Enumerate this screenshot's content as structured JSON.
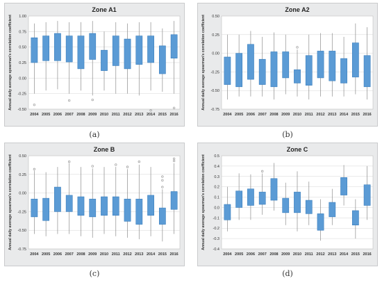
{
  "colors": {
    "box": "#5b9bd5",
    "box_edge": "#2e75b6",
    "whisker": "#8c8c8c",
    "plot_bg": "#ffffff",
    "grid": "#d4d4d4",
    "outlier": "#9a9a9a"
  },
  "chart_data": [
    {
      "type": "boxplot",
      "title": "Zone A1",
      "caption": "(a)",
      "ylabel": "Annual daily average spearman's correlation coefficient",
      "ylim": [
        -0.5,
        1.0
      ],
      "yticks": [
        -0.5,
        -0.25,
        0,
        0.25,
        0.5,
        0.75,
        1
      ],
      "ytick_labels": [
        "-0.50",
        "-0.25",
        "0.00",
        "0.25",
        "0.50",
        "0.75",
        "1.00"
      ],
      "categories": [
        "2004",
        "2005",
        "2006",
        "2007",
        "2008",
        "2009",
        "2010",
        "2011",
        "2012",
        "2013",
        "2014",
        "2015",
        "2016"
      ],
      "boxes": [
        {
          "min": -0.25,
          "q1": 0.25,
          "q3": 0.65,
          "max": 0.88,
          "outliers": [
            -0.43
          ]
        },
        {
          "min": -0.2,
          "q1": 0.28,
          "q3": 0.68,
          "max": 0.9,
          "outliers": []
        },
        {
          "min": -0.18,
          "q1": 0.28,
          "q3": 0.72,
          "max": 0.92,
          "outliers": []
        },
        {
          "min": -0.25,
          "q1": 0.26,
          "q3": 0.68,
          "max": 0.9,
          "outliers": [
            -0.36
          ]
        },
        {
          "min": -0.2,
          "q1": 0.15,
          "q3": 0.68,
          "max": 0.9,
          "outliers": []
        },
        {
          "min": -0.28,
          "q1": 0.3,
          "q3": 0.72,
          "max": 0.92,
          "outliers": [
            -0.35
          ]
        },
        {
          "min": -0.2,
          "q1": 0.12,
          "q3": 0.45,
          "max": 0.75,
          "outliers": []
        },
        {
          "min": -0.25,
          "q1": 0.2,
          "q3": 0.68,
          "max": 0.9,
          "outliers": []
        },
        {
          "min": -0.25,
          "q1": 0.15,
          "q3": 0.63,
          "max": 0.88,
          "outliers": []
        },
        {
          "min": -0.28,
          "q1": 0.22,
          "q3": 0.68,
          "max": 0.9,
          "outliers": []
        },
        {
          "min": -0.2,
          "q1": 0.25,
          "q3": 0.68,
          "max": 0.9,
          "outliers": [
            -0.52
          ]
        },
        {
          "min": -0.22,
          "q1": 0.07,
          "q3": 0.52,
          "max": 0.8,
          "outliers": []
        },
        {
          "min": -0.25,
          "q1": 0.32,
          "q3": 0.7,
          "max": 0.92,
          "outliers": [
            -0.48
          ]
        }
      ]
    },
    {
      "type": "boxplot",
      "title": "Zone A2",
      "caption": "(b)",
      "ylabel": "Annual daily average spearman's correlation coefficient",
      "ylim": [
        -0.75,
        0.5
      ],
      "yticks": [
        -0.75,
        -0.5,
        -0.25,
        0,
        0.25,
        0.5
      ],
      "ytick_labels": [
        "-0.75",
        "-0.50",
        "-0.25",
        "0.00",
        "0.25",
        "0.50"
      ],
      "categories": [
        "2004",
        "2005",
        "2006",
        "2007",
        "2008",
        "2009",
        "2010",
        "2011",
        "2012",
        "2013",
        "2014",
        "2015",
        "2016"
      ],
      "boxes": [
        {
          "min": -0.62,
          "q1": -0.42,
          "q3": -0.05,
          "max": 0.25,
          "outliers": []
        },
        {
          "min": -0.58,
          "q1": -0.45,
          "q3": 0.0,
          "max": 0.25,
          "outliers": []
        },
        {
          "min": -0.58,
          "q1": -0.35,
          "q3": 0.12,
          "max": 0.3,
          "outliers": []
        },
        {
          "min": -0.58,
          "q1": -0.42,
          "q3": -0.08,
          "max": 0.22,
          "outliers": []
        },
        {
          "min": -0.62,
          "q1": -0.45,
          "q3": 0.02,
          "max": 0.28,
          "outliers": []
        },
        {
          "min": -0.55,
          "q1": -0.33,
          "q3": 0.02,
          "max": 0.25,
          "outliers": []
        },
        {
          "min": -0.58,
          "q1": -0.4,
          "q3": -0.22,
          "max": 0.05,
          "outliers": [
            0.08
          ]
        },
        {
          "min": -0.62,
          "q1": -0.43,
          "q3": -0.03,
          "max": 0.25,
          "outliers": []
        },
        {
          "min": -0.58,
          "q1": -0.33,
          "q3": 0.03,
          "max": 0.27,
          "outliers": []
        },
        {
          "min": -0.58,
          "q1": -0.37,
          "q3": 0.03,
          "max": 0.27,
          "outliers": []
        },
        {
          "min": -0.58,
          "q1": -0.4,
          "q3": -0.07,
          "max": 0.22,
          "outliers": []
        },
        {
          "min": -0.55,
          "q1": -0.32,
          "q3": 0.14,
          "max": 0.4,
          "outliers": []
        },
        {
          "min": -0.62,
          "q1": -0.45,
          "q3": -0.03,
          "max": 0.35,
          "outliers": []
        }
      ]
    },
    {
      "type": "boxplot",
      "title": "Zone B",
      "caption": "(c)",
      "ylabel": "Annual daily average spearman's correlation coefficient",
      "ylim": [
        -0.75,
        0.5
      ],
      "yticks": [
        -0.75,
        -0.5,
        -0.25,
        0,
        0.25,
        0.5
      ],
      "ytick_labels": [
        "-0.75",
        "-0.50",
        "-0.25",
        "0.00",
        "0.25",
        "0.50"
      ],
      "categories": [
        "2004",
        "2005",
        "2006",
        "2007",
        "2008",
        "2009",
        "2010",
        "2011",
        "2012",
        "2013",
        "2014",
        "2015",
        "2016"
      ],
      "boxes": [
        {
          "min": -0.55,
          "q1": -0.32,
          "q3": -0.08,
          "max": 0.3,
          "outliers": [
            0.32
          ]
        },
        {
          "min": -0.58,
          "q1": -0.37,
          "q3": -0.07,
          "max": 0.28,
          "outliers": []
        },
        {
          "min": -0.55,
          "q1": -0.25,
          "q3": 0.08,
          "max": 0.35,
          "outliers": []
        },
        {
          "min": -0.55,
          "q1": -0.25,
          "q3": -0.03,
          "max": 0.4,
          "outliers": [
            0.42
          ]
        },
        {
          "min": -0.58,
          "q1": -0.3,
          "q3": -0.05,
          "max": 0.35,
          "outliers": []
        },
        {
          "min": -0.6,
          "q1": -0.32,
          "q3": -0.08,
          "max": 0.33,
          "outliers": [
            0.36
          ]
        },
        {
          "min": -0.55,
          "q1": -0.3,
          "q3": -0.05,
          "max": 0.35,
          "outliers": []
        },
        {
          "min": -0.58,
          "q1": -0.3,
          "q3": -0.05,
          "max": 0.35,
          "outliers": [
            0.38
          ]
        },
        {
          "min": -0.6,
          "q1": -0.38,
          "q3": -0.08,
          "max": 0.32,
          "outliers": [
            0.35
          ]
        },
        {
          "min": -0.62,
          "q1": -0.42,
          "q3": -0.08,
          "max": 0.38,
          "outliers": [
            0.42
          ]
        },
        {
          "min": -0.58,
          "q1": -0.3,
          "q3": -0.03,
          "max": 0.35,
          "outliers": []
        },
        {
          "min": -0.65,
          "q1": -0.42,
          "q3": -0.2,
          "max": 0.05,
          "outliers": [
            0.08,
            0.17,
            0.22
          ]
        },
        {
          "min": -0.55,
          "q1": -0.22,
          "q3": 0.02,
          "max": 0.4,
          "outliers": [
            0.43,
            0.46
          ]
        }
      ]
    },
    {
      "type": "boxplot",
      "title": "Zone C",
      "caption": "(d)",
      "ylabel": "Annual daily average spearman's correlation coefficient",
      "ylim": [
        -0.4,
        0.5
      ],
      "yticks": [
        -0.4,
        -0.3,
        -0.2,
        -0.1,
        0,
        0.1,
        0.2,
        0.3,
        0.4,
        0.5
      ],
      "ytick_labels": [
        "-0.4",
        "-0.3",
        "-0.2",
        "-0.1",
        "0.0",
        "0.1",
        "0.2",
        "0.3",
        "0.4",
        "0.5"
      ],
      "categories": [
        "2004",
        "2005",
        "2006",
        "2007",
        "2008",
        "2009",
        "2010",
        "2011",
        "2012",
        "2013",
        "2014",
        "2015",
        "2016"
      ],
      "boxes": [
        {
          "min": -0.23,
          "q1": -0.12,
          "q3": 0.03,
          "max": 0.2,
          "outliers": []
        },
        {
          "min": -0.12,
          "q1": 0.0,
          "q3": 0.16,
          "max": 0.33,
          "outliers": []
        },
        {
          "min": -0.12,
          "q1": 0.02,
          "q3": 0.18,
          "max": 0.32,
          "outliers": []
        },
        {
          "min": -0.07,
          "q1": 0.03,
          "q3": 0.15,
          "max": 0.33,
          "outliers": [
            0.35
          ]
        },
        {
          "min": -0.03,
          "q1": 0.07,
          "q3": 0.28,
          "max": 0.43,
          "outliers": []
        },
        {
          "min": -0.17,
          "q1": -0.05,
          "q3": 0.09,
          "max": 0.24,
          "outliers": []
        },
        {
          "min": -0.23,
          "q1": -0.05,
          "q3": 0.15,
          "max": 0.35,
          "outliers": []
        },
        {
          "min": -0.17,
          "q1": -0.06,
          "q3": 0.07,
          "max": 0.25,
          "outliers": []
        },
        {
          "min": -0.32,
          "q1": -0.22,
          "q3": -0.06,
          "max": 0.08,
          "outliers": []
        },
        {
          "min": -0.17,
          "q1": -0.09,
          "q3": 0.05,
          "max": 0.18,
          "outliers": []
        },
        {
          "min": 0.02,
          "q1": 0.12,
          "q3": 0.29,
          "max": 0.41,
          "outliers": []
        },
        {
          "min": -0.3,
          "q1": -0.17,
          "q3": -0.03,
          "max": 0.08,
          "outliers": []
        },
        {
          "min": -0.12,
          "q1": 0.02,
          "q3": 0.22,
          "max": 0.4,
          "outliers": []
        }
      ]
    }
  ]
}
